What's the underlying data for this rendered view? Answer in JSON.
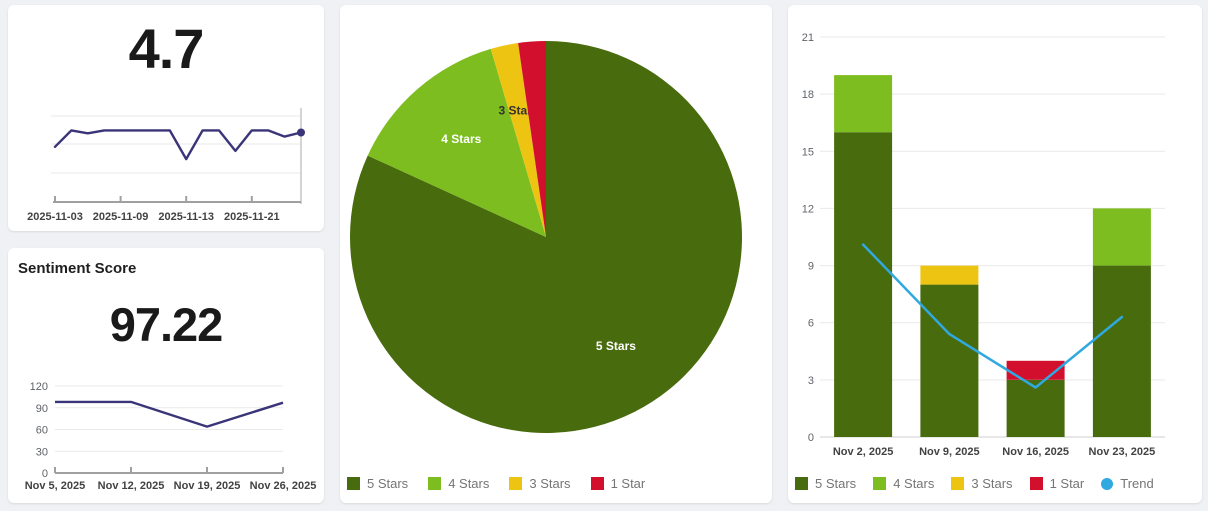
{
  "page": {
    "background": "#eff1f4",
    "card_background": "#ffffff"
  },
  "palette": {
    "five_stars": "#486b0d",
    "four_stars": "#7dbd1f",
    "three_stars": "#edc412",
    "one_star": "#d20f2d",
    "trend": "#30a8e0",
    "line": "#3a3478",
    "grid": "#e9e9e9",
    "axis": "#a0a0a0",
    "y_tick_label": "#5f6368",
    "x_tick_label": "#424242",
    "legend_text": "#757575",
    "value_text": "#1a1a1a",
    "slice_label_light": "#ffffff",
    "slice_label_dark": "#333333"
  },
  "cards": {
    "rating": {
      "value": "4.7"
    },
    "sentiment": {
      "title": "Sentiment Score",
      "value": "97.22"
    },
    "pie": {
      "legend": [
        {
          "label": "5 Stars",
          "swatch": "square",
          "color_key": "five_stars"
        },
        {
          "label": "4 Stars",
          "swatch": "square",
          "color_key": "four_stars"
        },
        {
          "label": "3 Stars",
          "swatch": "square",
          "color_key": "three_stars"
        },
        {
          "label": "1 Star",
          "swatch": "square",
          "color_key": "one_star"
        }
      ]
    },
    "bars": {
      "legend": [
        {
          "label": "5 Stars",
          "swatch": "square",
          "color_key": "five_stars"
        },
        {
          "label": "4 Stars",
          "swatch": "square",
          "color_key": "four_stars"
        },
        {
          "label": "3 Stars",
          "swatch": "square",
          "color_key": "three_stars"
        },
        {
          "label": "1 Star",
          "swatch": "square",
          "color_key": "one_star"
        },
        {
          "label": "Trend",
          "swatch": "circle",
          "color_key": "trend"
        }
      ]
    }
  },
  "chart_data": [
    {
      "id": "rating-trend",
      "type": "line",
      "variant": "sparkline",
      "values": [
        4.6,
        5.0,
        4.93,
        5.0,
        5.0,
        5.0,
        5.0,
        5.0,
        4.3,
        5.0,
        5.0,
        4.5,
        5.0,
        5.0,
        4.85,
        4.95
      ],
      "ylim": [
        3.25,
        5.5
      ],
      "x_tick_labels": [
        {
          "index": 0,
          "label": "2025-11-03"
        },
        {
          "index": 4,
          "label": "2025-11-09"
        },
        {
          "index": 8,
          "label": "2025-11-13"
        },
        {
          "index": 12,
          "label": "2025-11-21"
        }
      ],
      "end_dot": true,
      "grid": true,
      "legend": "none"
    },
    {
      "id": "sentiment-trend",
      "type": "line",
      "categories": [
        "Nov 5, 2025",
        "Nov 12, 2025",
        "Nov 19, 2025",
        "Nov 26, 2025"
      ],
      "values": [
        98,
        98,
        64,
        97
      ],
      "yticks": [
        0,
        30,
        60,
        90,
        120
      ],
      "ylim": [
        0,
        120
      ],
      "grid": true,
      "legend": "none"
    },
    {
      "id": "rating-distribution",
      "type": "pie",
      "labels": [
        "5 Stars",
        "4 Stars",
        "3 Stars",
        "1 Star"
      ],
      "values": [
        36,
        6,
        1,
        1
      ],
      "color_keys": [
        "five_stars",
        "four_stars",
        "three_stars",
        "one_star"
      ],
      "slice_labels": [
        {
          "text": "5 Stars",
          "tone": "light"
        },
        {
          "text": "4 Stars",
          "tone": "light"
        },
        {
          "text": "3 Stars",
          "tone": "dark"
        },
        null
      ],
      "legend_position": "bottom"
    },
    {
      "id": "weekly-ratings",
      "type": "bar",
      "stacked": true,
      "categories": [
        "Nov 2, 2025",
        "Nov 9, 2025",
        "Nov 16, 2025",
        "Nov 23, 2025"
      ],
      "series": [
        {
          "name": "5 Stars",
          "color_key": "five_stars",
          "values": [
            16,
            8,
            3,
            9
          ]
        },
        {
          "name": "4 Stars",
          "color_key": "four_stars",
          "values": [
            3,
            0,
            0,
            3
          ]
        },
        {
          "name": "3 Stars",
          "color_key": "three_stars",
          "values": [
            0,
            1,
            0,
            0
          ]
        },
        {
          "name": "1 Star",
          "color_key": "one_star",
          "values": [
            0,
            0,
            1,
            0
          ]
        }
      ],
      "trend": {
        "name": "Trend",
        "color_key": "trend",
        "values": [
          10.1,
          5.4,
          2.6,
          6.3
        ]
      },
      "yticks": [
        0,
        3,
        6,
        9,
        12,
        15,
        18,
        21
      ],
      "ylim": [
        0,
        21
      ],
      "grid": true,
      "legend_position": "bottom"
    }
  ]
}
